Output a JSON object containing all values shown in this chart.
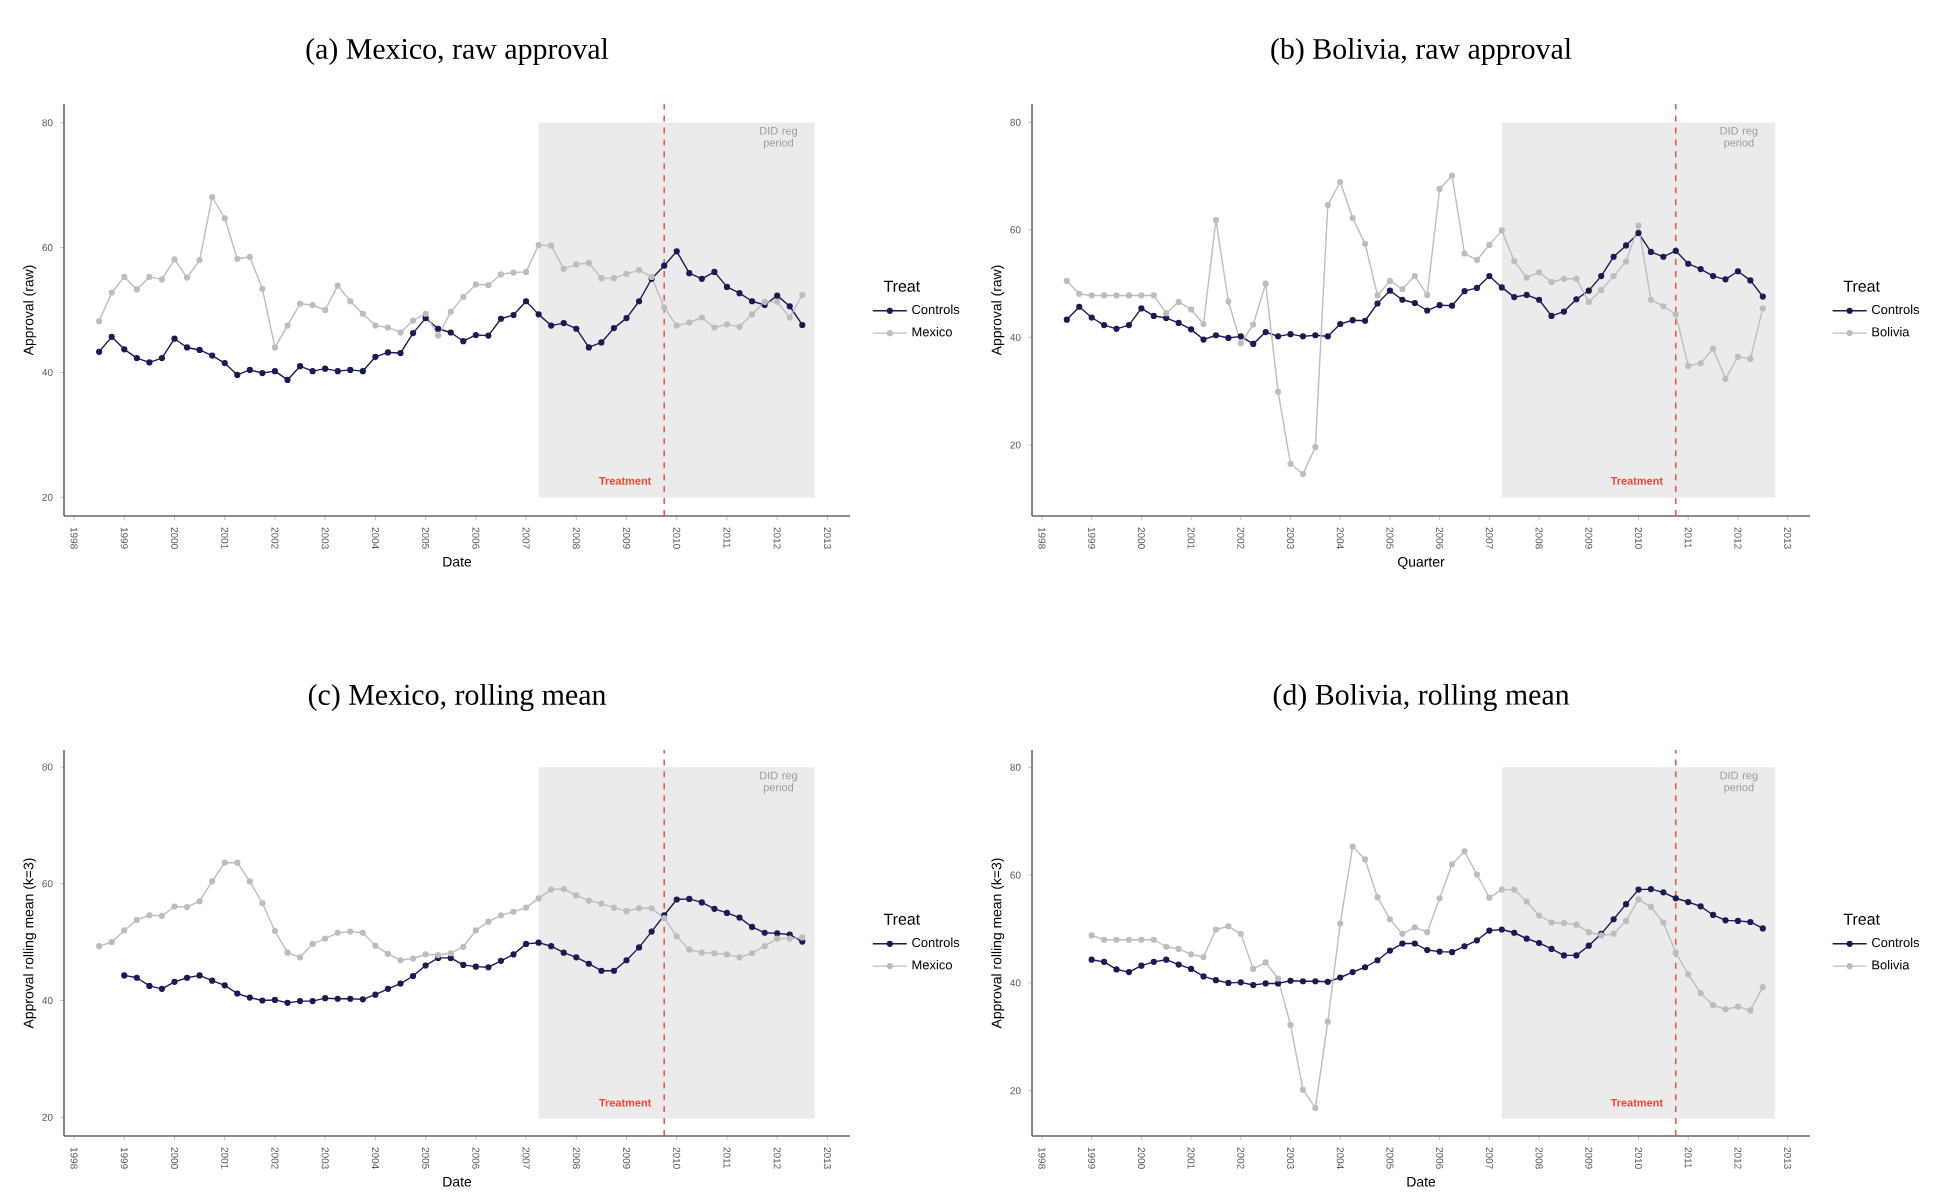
{
  "chart_data": [
    {
      "type": "line",
      "title": "(a) Mexico, raw approval",
      "xlabel": "Date",
      "ylabel": "Approval (raw)",
      "legend_title": "Treat",
      "legend": "right",
      "marker": "circle",
      "line_style": "solid",
      "xlim": [
        1997.8,
        2013.45
      ],
      "ylim": [
        17,
        83
      ],
      "xticks": [
        1998,
        1999,
        2000,
        2001,
        2002,
        2003,
        2004,
        2005,
        2006,
        2007,
        2008,
        2009,
        2010,
        2011,
        2012,
        2013
      ],
      "yticks": [
        20,
        40,
        60,
        80
      ],
      "x": [
        1998.5,
        1998.75,
        1999,
        1999.25,
        1999.5,
        1999.75,
        2000,
        2000.25,
        2000.5,
        2000.75,
        2001,
        2001.25,
        2001.5,
        2001.75,
        2002,
        2002.25,
        2002.5,
        2002.75,
        2003,
        2003.25,
        2003.5,
        2003.75,
        2004,
        2004.25,
        2004.5,
        2004.75,
        2005,
        2005.25,
        2005.5,
        2005.75,
        2006,
        2006.25,
        2006.5,
        2006.75,
        2007,
        2007.25,
        2007.5,
        2007.75,
        2008,
        2008.25,
        2008.5,
        2008.75,
        2009,
        2009.25,
        2009.5,
        2009.75,
        2010,
        2010.25,
        2010.5,
        2010.75,
        2011,
        2011.25,
        2011.5,
        2011.75,
        2012,
        2012.25,
        2012.5
      ],
      "bands": [
        {
          "axis": "x",
          "from": 2007.25,
          "to": 2012.75,
          "label": "DID reg period",
          "color": "#ebebeb"
        }
      ],
      "ref_lines": [
        {
          "axis": "x",
          "value": 2009.75,
          "label": "Treatment",
          "color": "#f2432f",
          "line_style": "dashed"
        }
      ],
      "series": [
        {
          "name": "Controls",
          "color": "#1b1a57",
          "values": [
            43.3,
            45.7,
            43.7,
            42.3,
            41.6,
            42.3,
            45.4,
            44.0,
            43.6,
            42.7,
            41.5,
            39.6,
            40.4,
            39.9,
            40.2,
            38.8,
            41.0,
            40.2,
            40.6,
            40.2,
            40.4,
            40.2,
            42.5,
            43.2,
            43.1,
            46.3,
            48.7,
            47.0,
            46.4,
            45.0,
            46.0,
            45.9,
            48.6,
            49.2,
            51.4,
            49.3,
            47.5,
            47.9,
            47.0,
            44.0,
            44.8,
            47.1,
            48.7,
            51.4,
            55.0,
            57.1,
            59.4,
            55.9,
            55.0,
            56.1,
            53.7,
            52.7,
            51.4,
            50.8,
            52.3,
            50.6,
            47.6
          ]
        },
        {
          "name": "Mexico",
          "color": "#bdbdbd",
          "values": [
            48.2,
            52.8,
            55.3,
            53.3,
            55.3,
            54.9,
            58.1,
            55.2,
            58.0,
            68.1,
            64.7,
            58.2,
            58.5,
            53.4,
            44.0,
            47.5,
            51.0,
            50.8,
            50.0,
            53.9,
            51.4,
            49.4,
            47.5,
            47.2,
            46.4,
            48.3,
            49.4,
            45.9,
            49.7,
            52.1,
            54.1,
            54.0,
            55.7,
            56.0,
            56.1,
            60.4,
            60.3,
            56.6,
            57.3,
            57.5,
            55.1,
            55.1,
            55.8,
            56.4,
            55.3,
            50.4,
            47.5,
            48.0,
            48.8,
            47.2,
            47.7,
            47.3,
            49.3,
            51.3,
            51.3,
            48.8,
            52.4
          ]
        }
      ]
    },
    {
      "type": "line",
      "title": "(b) Bolivia, raw approval",
      "xlabel": "Quarter",
      "ylabel": "Approval (raw)",
      "legend_title": "Treat",
      "legend": "right",
      "marker": "circle",
      "line_style": "solid",
      "xlim": [
        1997.8,
        2013.45
      ],
      "ylim": [
        6.8,
        83.4
      ],
      "xticks": [
        1998,
        1999,
        2000,
        2001,
        2002,
        2003,
        2004,
        2005,
        2006,
        2007,
        2008,
        2009,
        2010,
        2011,
        2012,
        2013
      ],
      "yticks": [
        20,
        40,
        60,
        80
      ],
      "x": [
        1998.5,
        1998.75,
        1999,
        1999.25,
        1999.5,
        1999.75,
        2000,
        2000.25,
        2000.5,
        2000.75,
        2001,
        2001.25,
        2001.5,
        2001.75,
        2002,
        2002.25,
        2002.5,
        2002.75,
        2003,
        2003.25,
        2003.5,
        2003.75,
        2004,
        2004.25,
        2004.5,
        2004.75,
        2005,
        2005.25,
        2005.5,
        2005.75,
        2006,
        2006.25,
        2006.5,
        2006.75,
        2007,
        2007.25,
        2007.5,
        2007.75,
        2008,
        2008.25,
        2008.5,
        2008.75,
        2009,
        2009.25,
        2009.5,
        2009.75,
        2010,
        2010.25,
        2010.5,
        2010.75,
        2011,
        2011.25,
        2011.5,
        2011.75,
        2012,
        2012.25,
        2012.5
      ],
      "bands": [
        {
          "axis": "x",
          "from": 2007.25,
          "to": 2012.75,
          "label": "DID reg period",
          "color": "#ebebeb"
        }
      ],
      "ref_lines": [
        {
          "axis": "x",
          "value": 2010.75,
          "label": "Treatment",
          "color": "#f2432f",
          "line_style": "dashed"
        }
      ],
      "series": [
        {
          "name": "Controls",
          "color": "#1b1a57",
          "values": [
            43.3,
            45.7,
            43.7,
            42.3,
            41.6,
            42.3,
            45.4,
            44.0,
            43.6,
            42.7,
            41.5,
            39.6,
            40.4,
            39.9,
            40.2,
            38.8,
            41.0,
            40.2,
            40.6,
            40.2,
            40.4,
            40.2,
            42.5,
            43.2,
            43.1,
            46.3,
            48.7,
            47.0,
            46.4,
            45.0,
            46.0,
            45.9,
            48.6,
            49.2,
            51.4,
            49.3,
            47.5,
            47.9,
            47.0,
            44.0,
            44.8,
            47.1,
            48.7,
            51.4,
            55.0,
            57.1,
            59.4,
            55.9,
            55.0,
            56.1,
            53.7,
            52.7,
            51.4,
            50.8,
            52.3,
            50.6,
            47.6
          ]
        },
        {
          "name": "Bolivia",
          "color": "#bdbdbd",
          "values": [
            50.5,
            48.1,
            47.8,
            47.8,
            47.8,
            47.8,
            47.8,
            47.8,
            44.5,
            46.6,
            45.2,
            42.5,
            61.8,
            46.7,
            38.9,
            42.4,
            50.0,
            29.9,
            16.5,
            14.6,
            19.6,
            64.6,
            68.9,
            62.2,
            57.4,
            47.8,
            50.5,
            49.0,
            51.4,
            47.9,
            67.6,
            70.1,
            55.6,
            54.4,
            57.2,
            59.9,
            54.2,
            51.1,
            52.1,
            50.3,
            50.9,
            50.9,
            46.6,
            48.8,
            51.4,
            54.1,
            60.8,
            47.0,
            45.8,
            44.3,
            34.7,
            35.2,
            37.9,
            32.3,
            36.4,
            36.0,
            45.4
          ]
        }
      ]
    },
    {
      "type": "line",
      "title": "(c) Mexico, rolling mean",
      "xlabel": "Date",
      "ylabel": "Approval rolling mean (k=3)",
      "legend_title": "Treat",
      "legend": "right",
      "marker": "circle",
      "line_style": "solid",
      "xlim": [
        1997.8,
        2013.45
      ],
      "ylim": [
        16.8,
        82.9
      ],
      "xticks": [
        1998,
        1999,
        2000,
        2001,
        2002,
        2003,
        2004,
        2005,
        2006,
        2007,
        2008,
        2009,
        2010,
        2011,
        2012,
        2013
      ],
      "yticks": [
        20,
        40,
        60,
        80
      ],
      "x": [
        1998.5,
        1998.75,
        1999,
        1999.25,
        1999.5,
        1999.75,
        2000,
        2000.25,
        2000.5,
        2000.75,
        2001,
        2001.25,
        2001.5,
        2001.75,
        2002,
        2002.25,
        2002.5,
        2002.75,
        2003,
        2003.25,
        2003.5,
        2003.75,
        2004,
        2004.25,
        2004.5,
        2004.75,
        2005,
        2005.25,
        2005.5,
        2005.75,
        2006,
        2006.25,
        2006.5,
        2006.75,
        2007,
        2007.25,
        2007.5,
        2007.75,
        2008,
        2008.25,
        2008.5,
        2008.75,
        2009,
        2009.25,
        2009.5,
        2009.75,
        2010,
        2010.25,
        2010.5,
        2010.75,
        2011,
        2011.25,
        2011.5,
        2011.75,
        2012,
        2012.25,
        2012.5
      ],
      "bands": [
        {
          "axis": "x",
          "from": 2007.25,
          "to": 2012.75,
          "label": "DID reg period",
          "color": "#ebebeb"
        }
      ],
      "ref_lines": [
        {
          "axis": "x",
          "value": 2009.75,
          "label": "Treatment",
          "color": "#f2432f",
          "line_style": "dashed"
        }
      ],
      "series": [
        {
          "name": "Controls",
          "color": "#1b1a57",
          "values": [
            null,
            null,
            44.3,
            43.9,
            42.5,
            42.0,
            43.2,
            43.9,
            44.3,
            43.4,
            42.6,
            41.2,
            40.5,
            40.0,
            40.1,
            39.6,
            39.9,
            39.9,
            40.4,
            40.3,
            40.3,
            40.2,
            41.0,
            42.0,
            42.9,
            44.2,
            46.0,
            47.3,
            47.3,
            46.1,
            45.8,
            45.7,
            46.8,
            47.9,
            49.7,
            49.9,
            49.3,
            48.2,
            47.4,
            46.3,
            45.1,
            45.1,
            46.9,
            49.1,
            51.8,
            54.6,
            57.3,
            57.4,
            56.8,
            55.7,
            55.0,
            54.2,
            52.6,
            51.6,
            51.5,
            51.3,
            50.1
          ]
        },
        {
          "name": "Mexico",
          "color": "#bdbdbd",
          "values": [
            49.3,
            50.0,
            52.0,
            53.8,
            54.6,
            54.5,
            56.1,
            56.0,
            57.0,
            60.4,
            63.6,
            63.6,
            60.4,
            56.7,
            51.9,
            48.2,
            47.4,
            49.7,
            50.6,
            51.6,
            51.8,
            51.6,
            49.4,
            48.0,
            46.9,
            47.2,
            47.9,
            47.8,
            48.1,
            49.2,
            52.0,
            53.5,
            54.6,
            55.2,
            55.9,
            57.5,
            59.0,
            59.1,
            58.0,
            57.1,
            56.6,
            55.9,
            55.3,
            55.8,
            55.8,
            54.1,
            51.0,
            48.7,
            48.2,
            48.1,
            47.9,
            47.4,
            48.1,
            49.3,
            50.6,
            50.6,
            50.8
          ]
        }
      ]
    },
    {
      "type": "line",
      "title": "(d) Bolivia, rolling mean",
      "xlabel": "Date",
      "ylabel": "Approval rolling mean (k=3)",
      "legend_title": "Treat",
      "legend": "right",
      "marker": "circle",
      "line_style": "solid",
      "xlim": [
        1997.8,
        2013.45
      ],
      "ylim": [
        11.6,
        83.2
      ],
      "xticks": [
        1998,
        1999,
        2000,
        2001,
        2002,
        2003,
        2004,
        2005,
        2006,
        2007,
        2008,
        2009,
        2010,
        2011,
        2012,
        2013
      ],
      "yticks": [
        20,
        40,
        60,
        80
      ],
      "x": [
        1999,
        1999.25,
        1999.5,
        1999.75,
        2000,
        2000.25,
        2000.5,
        2000.75,
        2001,
        2001.25,
        2001.5,
        2001.75,
        2002,
        2002.25,
        2002.5,
        2002.75,
        2003,
        2003.25,
        2003.5,
        2003.75,
        2004,
        2004.25,
        2004.5,
        2004.75,
        2005,
        2005.25,
        2005.5,
        2005.75,
        2006,
        2006.25,
        2006.5,
        2006.75,
        2007,
        2007.25,
        2007.5,
        2007.75,
        2008,
        2008.25,
        2008.5,
        2008.75,
        2009,
        2009.25,
        2009.5,
        2009.75,
        2010,
        2010.25,
        2010.5,
        2010.75,
        2011,
        2011.25,
        2011.5,
        2011.75,
        2012,
        2012.25,
        2012.5
      ],
      "bands": [
        {
          "axis": "x",
          "from": 2007.25,
          "to": 2012.75,
          "label": "DID reg period",
          "color": "#ebebeb"
        }
      ],
      "ref_lines": [
        {
          "axis": "x",
          "value": 2010.75,
          "label": "Treatment",
          "color": "#f2432f",
          "line_style": "dashed"
        }
      ],
      "series": [
        {
          "name": "Controls",
          "color": "#1b1a57",
          "values": [
            44.3,
            43.9,
            42.5,
            42.0,
            43.2,
            43.9,
            44.3,
            43.4,
            42.6,
            41.2,
            40.5,
            40.0,
            40.1,
            39.6,
            39.9,
            39.9,
            40.4,
            40.3,
            40.3,
            40.2,
            41.0,
            42.0,
            42.9,
            44.2,
            46.0,
            47.3,
            47.3,
            46.1,
            45.8,
            45.7,
            46.8,
            47.9,
            49.7,
            49.9,
            49.3,
            48.2,
            47.4,
            46.3,
            45.1,
            45.1,
            46.9,
            49.1,
            51.8,
            54.6,
            57.3,
            57.4,
            56.8,
            55.7,
            55.0,
            54.2,
            52.6,
            51.6,
            51.5,
            51.3,
            50.1
          ]
        },
        {
          "name": "Bolivia",
          "color": "#bdbdbd",
          "values": [
            48.8,
            48.0,
            48.0,
            48.0,
            48.0,
            48.0,
            46.7,
            46.3,
            45.3,
            44.8,
            49.9,
            50.5,
            49.1,
            42.6,
            43.8,
            40.8,
            32.2,
            20.2,
            16.8,
            32.8,
            51.0,
            65.3,
            62.9,
            55.9,
            51.8,
            49.1,
            50.3,
            49.4,
            55.7,
            62.0,
            64.4,
            60.1,
            55.8,
            57.3,
            57.3,
            55.1,
            52.5,
            51.2,
            51.1,
            50.8,
            49.4,
            48.8,
            49.1,
            51.5,
            55.5,
            54.1,
            51.2,
            45.6,
            41.6,
            38.1,
            35.9,
            35.1,
            35.6,
            34.9,
            39.2
          ]
        }
      ]
    }
  ]
}
